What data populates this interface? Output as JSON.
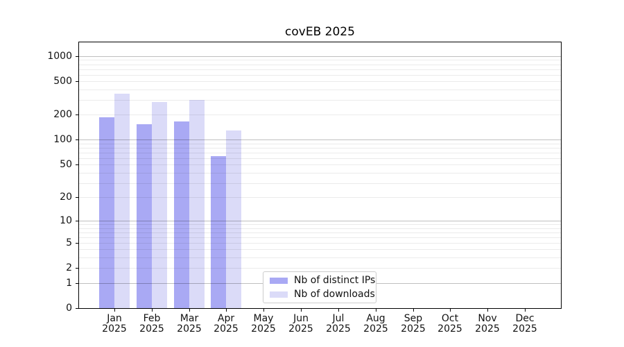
{
  "chart_data": {
    "type": "bar",
    "title": "covEB 2025",
    "scale": "log1p",
    "categories": [
      "Jan 2025",
      "Feb 2025",
      "Mar 2025",
      "Apr 2025",
      "May 2025",
      "Jun 2025",
      "Jul 2025",
      "Aug 2025",
      "Sep 2025",
      "Oct 2025",
      "Nov 2025",
      "Dec 2025"
    ],
    "series": [
      {
        "name": "Nb of distinct IPs",
        "color": "#a9a9f4",
        "values": [
          185,
          155,
          165,
          64,
          0,
          0,
          0,
          0,
          0,
          0,
          0,
          0
        ]
      },
      {
        "name": "Nb of downloads",
        "color": "#dbdbf8",
        "values": [
          355,
          285,
          300,
          130,
          0,
          0,
          0,
          0,
          0,
          0,
          0,
          0
        ]
      }
    ],
    "yticks": [
      0,
      1,
      2,
      5,
      10,
      20,
      50,
      100,
      200,
      500,
      1000
    ],
    "ylim": [
      0,
      1400
    ],
    "xlabel": "",
    "ylabel": "",
    "grid": "horizontal",
    "legend_position": "inside-bottom-center"
  },
  "colors": {
    "background": "#ffffff",
    "axis_frame": "#000000",
    "grid_major": "rgba(0,0,0,0.25)",
    "grid_minor": "rgba(0,0,0,0.08)",
    "text": "#111111",
    "legend_border": "#cccccc"
  }
}
